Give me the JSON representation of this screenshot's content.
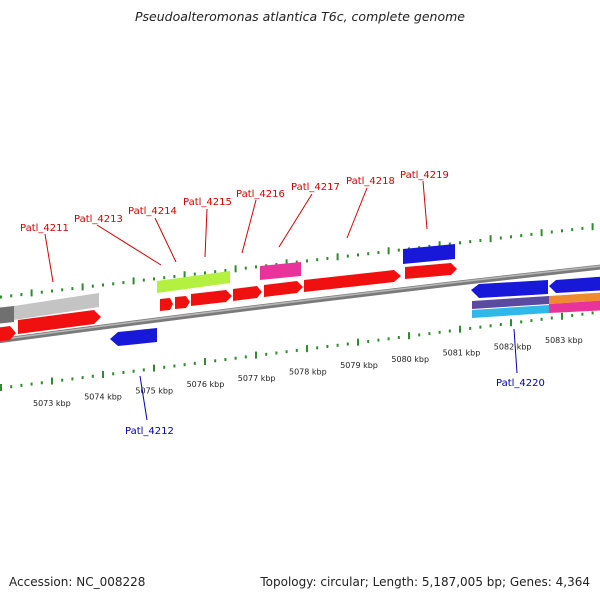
{
  "title": "Pseudoalteromonas atlantica T6c, complete genome",
  "accession": "Accession: NC_008228",
  "summary": "Topology: circular; Length: 5,187,005 bp; Genes: 4,364",
  "colors": {
    "backbone": "#8a8a8a",
    "tick": "#2e8b2e",
    "forward_label": "#d40000",
    "reverse_label": "#0000b4",
    "cds_red": "#f01010",
    "cds_blue": "#1818d8",
    "cds_gray": "#bfbfbf",
    "cds_green": "#b4f040",
    "cds_magenta": "#e8349a",
    "cds_cyan": "#30b8e8"
  },
  "kbp_labels": [
    "5073 kbp",
    "5074 kbp",
    "5075 kbp",
    "5076 kbp",
    "5077 kbp",
    "5078 kbp",
    "5079 kbp",
    "5080 kbp",
    "5081 kbp",
    "5082 kbp",
    "5083 kbp"
  ],
  "gene_labels": {
    "forward": [
      "Patl_4211",
      "Patl_4213",
      "Patl_4214",
      "Patl_4215",
      "Patl_4216",
      "Patl_4217",
      "Patl_4218",
      "Patl_4219"
    ],
    "reverse": [
      "Patl_4212",
      "Patl_4220"
    ]
  }
}
